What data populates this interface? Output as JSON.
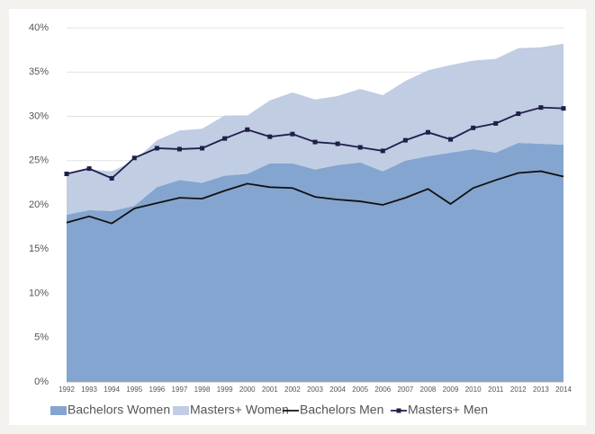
{
  "chart_data": {
    "type": "area",
    "categories": [
      "1992",
      "1993",
      "1994",
      "1995",
      "1996",
      "1997",
      "1998",
      "1999",
      "2000",
      "2001",
      "2002",
      "2003",
      "2004",
      "2005",
      "2006",
      "2007",
      "2008",
      "2009",
      "2010",
      "2011",
      "2012",
      "2013",
      "2014"
    ],
    "series": [
      {
        "name": "Bachelors Women",
        "type": "area",
        "color": "#84a5cf",
        "values": [
          18.9,
          19.4,
          19.3,
          19.9,
          22.0,
          22.8,
          22.5,
          23.3,
          23.5,
          24.7,
          24.7,
          24.0,
          24.5,
          24.8,
          23.8,
          25.0,
          25.5,
          25.9,
          26.3,
          25.9,
          27.0,
          26.9,
          26.8
        ]
      },
      {
        "name": "Masters+ Women",
        "type": "area",
        "color": "#c0cde3",
        "values": [
          4.6,
          4.6,
          4.5,
          5.1,
          5.3,
          5.6,
          6.1,
          6.8,
          6.6,
          7.1,
          8.0,
          7.9,
          7.8,
          8.3,
          8.6,
          9.0,
          9.7,
          9.9,
          10.0,
          10.6,
          10.7,
          10.9,
          11.4
        ]
      },
      {
        "name": "Bachelors Men",
        "type": "line",
        "color": "#111111",
        "values": [
          18.0,
          18.7,
          17.9,
          19.6,
          20.2,
          20.8,
          20.7,
          21.6,
          22.4,
          22.0,
          21.9,
          20.9,
          20.6,
          20.4,
          20.0,
          20.8,
          21.8,
          20.1,
          21.9,
          22.8,
          23.6,
          23.8,
          23.2
        ]
      },
      {
        "name": "Masters+ Men",
        "type": "line",
        "color": "#1f1f4a",
        "markers": true,
        "values": [
          23.5,
          24.1,
          23.0,
          25.3,
          26.4,
          26.3,
          26.4,
          27.5,
          28.5,
          27.7,
          28.0,
          27.1,
          26.9,
          26.5,
          26.1,
          27.3,
          28.2,
          27.4,
          28.7,
          29.2,
          30.3,
          31.0,
          30.9
        ]
      }
    ],
    "ylim": [
      0,
      40
    ],
    "yticks": [
      {
        "value": 0,
        "label": "0%"
      },
      {
        "value": 5,
        "label": "5%"
      },
      {
        "value": 10,
        "label": "10%"
      },
      {
        "value": 15,
        "label": "15%"
      },
      {
        "value": 20,
        "label": "20%"
      },
      {
        "value": 25,
        "label": "25%"
      },
      {
        "value": 30,
        "label": "30%"
      },
      {
        "value": 35,
        "label": "35%"
      },
      {
        "value": 40,
        "label": "40%"
      }
    ],
    "grid": true,
    "legend": "bottom"
  }
}
